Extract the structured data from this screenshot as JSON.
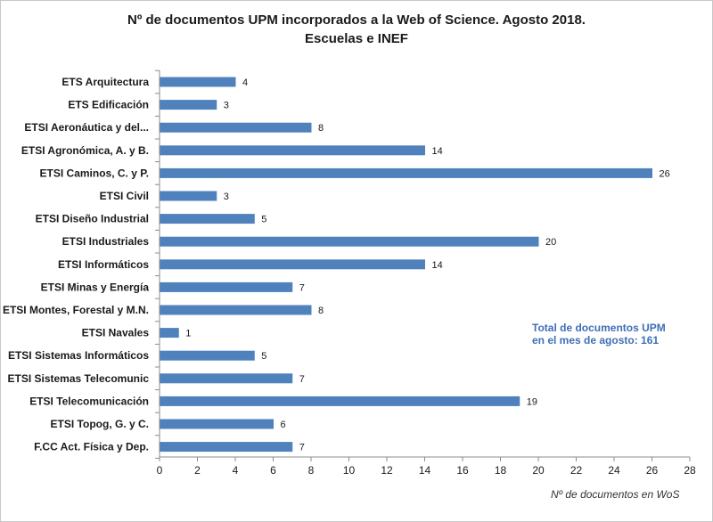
{
  "chart_data": {
    "type": "bar",
    "orientation": "horizontal",
    "title_line1": "Nº de documentos UPM incorporados a la Web of Science. Agosto 2018.",
    "title_line2": "Escuelas e INEF",
    "xlabel": "Nº de documentos en WoS",
    "ylabel": "",
    "xlim": [
      0,
      28
    ],
    "xticks": [
      0,
      2,
      4,
      6,
      8,
      10,
      12,
      14,
      16,
      18,
      20,
      22,
      24,
      26,
      28
    ],
    "categories": [
      "ETS Arquitectura",
      "ETS Edificación",
      "ETSI Aeronáutica y del...",
      "ETSI Agronómica, A. y B.",
      "ETSI Caminos, C. y P.",
      "ETSI Civil",
      "ETSI Diseño Industrial",
      "ETSI Industriales",
      "ETSI Informáticos",
      "ETSI Minas y Energía",
      "ETSI Montes, Forestal y M.N.",
      "ETSI Navales",
      "ETSI Sistemas Informáticos",
      "ETSI Sistemas Telecomunic",
      "ETSI Telecomunicación",
      "ETSI Topog, G. y C.",
      "F.CC Act. Física y Dep."
    ],
    "values": [
      4,
      3,
      8,
      14,
      26,
      3,
      5,
      20,
      14,
      7,
      8,
      1,
      5,
      7,
      19,
      6,
      7
    ],
    "bar_color": "#4f81bd",
    "grid": false,
    "annotation_line1": "Total de documentos  UPM",
    "annotation_line2": "en el mes de agosto: 161",
    "annotation_color": "#3f6fb5"
  }
}
